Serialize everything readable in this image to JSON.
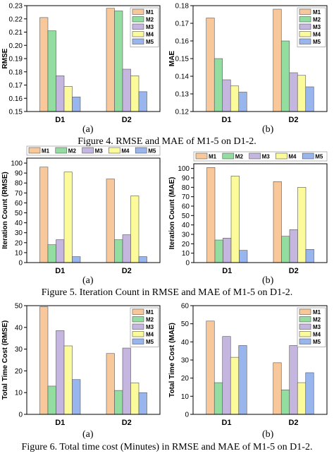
{
  "colors": {
    "M1": "#f8c89a",
    "M2": "#93dda0",
    "M3": "#c5b6df",
    "M4": "#fbfb9c",
    "M5": "#98b5ee"
  },
  "figures": [
    {
      "caption": "Figure 4. RMSE and MAE of M1-5 on D1-2.",
      "sublabels": [
        "(a)",
        "(b)"
      ]
    },
    {
      "caption": "Figure 5. Iteration Count in RMSE and MAE of M1-5 on D1-2.",
      "sublabels": [
        "(a)",
        "(b)"
      ]
    },
    {
      "caption": "Figure 6. Total time cost (Minutes) in RMSE and MAE of M1-5 on D1-2.",
      "sublabels": [
        "(a)",
        "(b)"
      ]
    }
  ],
  "chart_data": [
    {
      "id": "fig4a",
      "type": "bar",
      "categories": [
        "D1",
        "D2"
      ],
      "ylabel": "RMSE",
      "ylim": [
        0.15,
        0.23
      ],
      "yticks": [
        0.15,
        0.16,
        0.17,
        0.18,
        0.19,
        0.2,
        0.21,
        0.22,
        0.23
      ],
      "ytick_labels": [
        "0.15",
        "0.16",
        "0.17",
        "0.18",
        "0.19",
        "0.20",
        "0.21",
        "0.22",
        "0.23"
      ],
      "legend": "top-right",
      "series": [
        {
          "name": "M1",
          "values": [
            0.221,
            0.228
          ]
        },
        {
          "name": "M2",
          "values": [
            0.211,
            0.226
          ]
        },
        {
          "name": "M3",
          "values": [
            0.177,
            0.182
          ]
        },
        {
          "name": "M4",
          "values": [
            0.169,
            0.177
          ]
        },
        {
          "name": "M5",
          "values": [
            0.161,
            0.165
          ]
        }
      ]
    },
    {
      "id": "fig4b",
      "type": "bar",
      "categories": [
        "D1",
        "D2"
      ],
      "ylabel": "MAE",
      "ylim": [
        0.12,
        0.18
      ],
      "yticks": [
        0.12,
        0.13,
        0.14,
        0.15,
        0.16,
        0.17,
        0.18
      ],
      "ytick_labels": [
        "0.12",
        "0.13",
        "0.14",
        "0.15",
        "0.16",
        "0.17",
        "0.18"
      ],
      "legend": "top-right",
      "series": [
        {
          "name": "M1",
          "values": [
            0.173,
            0.178
          ]
        },
        {
          "name": "M2",
          "values": [
            0.15,
            0.16
          ]
        },
        {
          "name": "M3",
          "values": [
            0.138,
            0.142
          ]
        },
        {
          "name": "M4",
          "values": [
            0.1345,
            0.1405
          ]
        },
        {
          "name": "M5",
          "values": [
            0.131,
            0.134
          ]
        }
      ]
    },
    {
      "id": "fig5a",
      "type": "bar",
      "categories": [
        "D1",
        "D2"
      ],
      "ylabel": "Iteration Count (RMSE)",
      "ylim": [
        0,
        105
      ],
      "yticks": [
        0,
        10,
        20,
        30,
        40,
        50,
        60,
        70,
        80,
        90,
        100
      ],
      "ytick_labels": [
        "0",
        "10",
        "20",
        "30",
        "40",
        "50",
        "60",
        "70",
        "80",
        "90",
        "100"
      ],
      "legend": "top-row",
      "series": [
        {
          "name": "M1",
          "values": [
            96,
            84
          ]
        },
        {
          "name": "M2",
          "values": [
            18,
            23
          ]
        },
        {
          "name": "M3",
          "values": [
            23,
            28
          ]
        },
        {
          "name": "M4",
          "values": [
            91,
            67
          ]
        },
        {
          "name": "M5",
          "values": [
            6,
            6
          ]
        }
      ]
    },
    {
      "id": "fig5b",
      "type": "bar",
      "categories": [
        "D1",
        "D2"
      ],
      "ylabel": "Iteration Count (MAE)",
      "ylim": [
        0,
        105
      ],
      "yticks": [
        0,
        10,
        20,
        30,
        40,
        50,
        60,
        70,
        80,
        90,
        100
      ],
      "ytick_labels": [
        "0",
        "10",
        "20",
        "30",
        "40",
        "50",
        "60",
        "70",
        "80",
        "90",
        "100"
      ],
      "legend": "top-row",
      "series": [
        {
          "name": "M1",
          "values": [
            101,
            86
          ]
        },
        {
          "name": "M2",
          "values": [
            24,
            28
          ]
        },
        {
          "name": "M3",
          "values": [
            26,
            35
          ]
        },
        {
          "name": "M4",
          "values": [
            92,
            80
          ]
        },
        {
          "name": "M5",
          "values": [
            13,
            14
          ]
        }
      ]
    },
    {
      "id": "fig6a",
      "type": "bar",
      "categories": [
        "D1",
        "D2"
      ],
      "ylabel": "Total Time Cost (RMSE)",
      "ylim": [
        0,
        50
      ],
      "yticks": [
        0,
        10,
        20,
        30,
        40,
        50
      ],
      "ytick_labels": [
        "0",
        "10",
        "20",
        "30",
        "40",
        "50"
      ],
      "legend": "top-right",
      "series": [
        {
          "name": "M1",
          "values": [
            49.5,
            28
          ]
        },
        {
          "name": "M2",
          "values": [
            13,
            11
          ]
        },
        {
          "name": "M3",
          "values": [
            38.5,
            30.5
          ]
        },
        {
          "name": "M4",
          "values": [
            31.5,
            14.5
          ]
        },
        {
          "name": "M5",
          "values": [
            16,
            10
          ]
        }
      ]
    },
    {
      "id": "fig6b",
      "type": "bar",
      "categories": [
        "D1",
        "D2"
      ],
      "ylabel": "Total Time Cost (MAE)",
      "ylim": [
        0,
        60
      ],
      "yticks": [
        0,
        10,
        20,
        30,
        40,
        50,
        60
      ],
      "ytick_labels": [
        "0",
        "10",
        "20",
        "30",
        "40",
        "50",
        "60"
      ],
      "legend": "top-right",
      "series": [
        {
          "name": "M1",
          "values": [
            51.5,
            28.5
          ]
        },
        {
          "name": "M2",
          "values": [
            17.5,
            13.5
          ]
        },
        {
          "name": "M3",
          "values": [
            43,
            38
          ]
        },
        {
          "name": "M4",
          "values": [
            31.5,
            17.5
          ]
        },
        {
          "name": "M5",
          "values": [
            38,
            23
          ]
        }
      ]
    }
  ]
}
